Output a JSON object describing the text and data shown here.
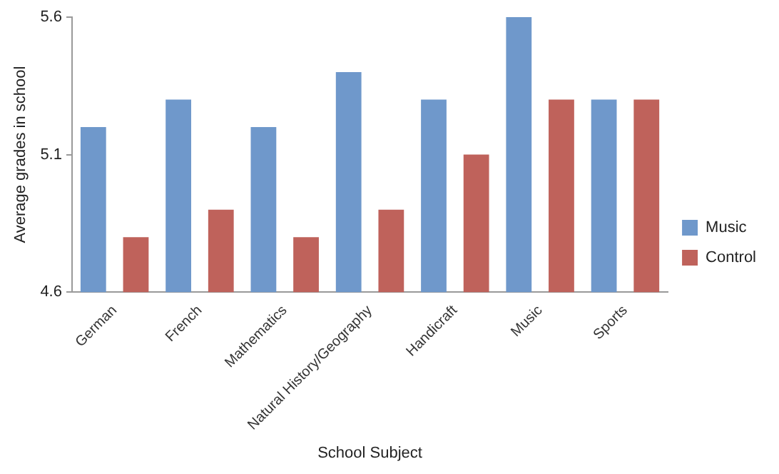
{
  "chart_data": {
    "type": "bar",
    "xlabel": "School Subject",
    "ylabel": "Average grades in school",
    "categories": [
      "German",
      "French",
      "Mathematics",
      "Natural History/Geography",
      "Handicraft",
      "Music",
      "Sports"
    ],
    "series": [
      {
        "name": "Music",
        "color": "#6f98cb",
        "values": [
          5.2,
          5.3,
          5.2,
          5.4,
          5.3,
          5.6,
          5.3
        ]
      },
      {
        "name": "Control",
        "color": "#bf625b",
        "values": [
          4.8,
          4.9,
          4.8,
          4.9,
          5.1,
          5.3,
          5.3
        ]
      }
    ],
    "ylim": [
      4.6,
      5.6
    ],
    "yticks": [
      4.6,
      5.1,
      5.6
    ],
    "grid": false,
    "legend": "right"
  }
}
